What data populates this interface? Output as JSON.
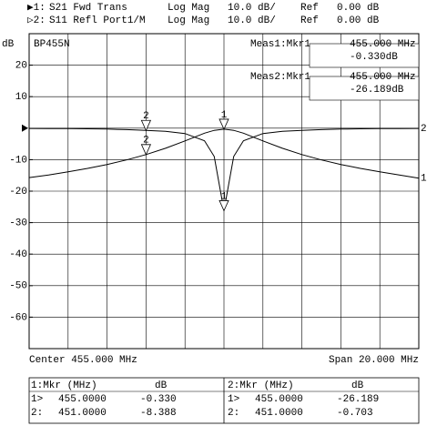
{
  "chart_data": {
    "type": "line",
    "header": [
      {
        "id": "▶1:",
        "param": "S21 Fwd Trans",
        "format": "Log Mag",
        "scale": "10.0 dB/",
        "ref_text": "Ref",
        "ref": {
          "value": 0,
          "label": "0.00 dB"
        }
      },
      {
        "id": "▷2:",
        "param": "S11 Refl Port1/M",
        "format": "Log Mag",
        "scale": "10.0 dB/",
        "ref_text": "Ref",
        "ref": {
          "value": 0,
          "label": "0.00 dB"
        }
      }
    ],
    "ylabel": "dB",
    "inner_label": "BP455N",
    "meas": [
      {
        "title": "Meas1:Mkr1",
        "freq": "455.000 MHz",
        "value": "-0.330dB"
      },
      {
        "title": "Meas2:Mkr1",
        "freq": "455.000 MHz",
        "value": "-26.189dB"
      }
    ],
    "center": "Center 455.000 MHz",
    "span": "Span 20.000 MHz",
    "xlim": [
      445,
      465
    ],
    "ylim": [
      -70,
      30
    ],
    "yticks": [
      20,
      10,
      -10,
      -20,
      -30,
      -40,
      -50,
      -60
    ],
    "x": [
      445,
      446,
      447,
      448,
      449,
      450,
      451,
      452,
      453,
      454,
      454.5,
      455,
      455.5,
      456,
      457,
      458,
      459,
      460,
      461,
      462,
      463,
      464,
      465
    ],
    "series": [
      {
        "name": "1",
        "color": "#000000",
        "values": [
          -15.7,
          -14.86,
          -13.87,
          -12.78,
          -11.53,
          -10.08,
          -8.388,
          -6.39,
          -4.04,
          -1.59,
          -0.68,
          -0.33,
          -0.68,
          -1.59,
          -4.04,
          -6.39,
          -8.39,
          -10.08,
          -11.53,
          -12.78,
          -13.87,
          -14.86,
          -15.9
        ]
      },
      {
        "name": "2",
        "color": "#000000",
        "values": [
          -0.1,
          -0.12,
          -0.15,
          -0.2,
          -0.3,
          -0.45,
          -0.703,
          -1.0,
          -1.7,
          -4.0,
          -9.0,
          -26.189,
          -9.0,
          -4.0,
          -1.7,
          -1.0,
          -0.703,
          -0.45,
          -0.3,
          -0.2,
          -0.15,
          -0.12,
          -0.1
        ]
      }
    ],
    "markers": [
      {
        "label": "1",
        "index": 11
      },
      {
        "label": "2",
        "index": 6
      }
    ],
    "table": [
      {
        "title": "1:Mkr (MHz)",
        "unit": "dB",
        "rows": [
          [
            "1>",
            "455.0000",
            "-0.330"
          ],
          [
            "2:",
            "451.0000",
            "-8.388"
          ]
        ]
      },
      {
        "title": "2:Mkr (MHz)",
        "unit": "dB",
        "rows": [
          [
            "1>",
            "455.0000",
            "-26.189"
          ],
          [
            "2:",
            "451.0000",
            "-0.703"
          ]
        ]
      }
    ]
  }
}
